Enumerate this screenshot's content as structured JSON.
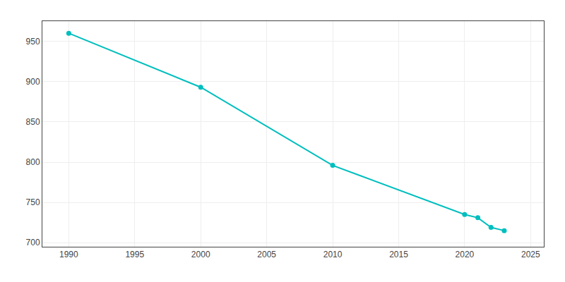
{
  "chart_data": {
    "type": "line",
    "x": [
      1990,
      2000,
      2010,
      2020,
      2021,
      2022,
      2023
    ],
    "values": [
      960,
      893,
      796,
      735,
      731,
      719,
      715
    ],
    "color": "#00BEBE",
    "marker": "circle",
    "line_style": "solid",
    "xlim": [
      1988,
      2026
    ],
    "ylim": [
      695,
      975
    ],
    "xticks": [
      1990,
      1995,
      2000,
      2005,
      2010,
      2015,
      2020,
      2025
    ],
    "yticks": [
      700,
      750,
      800,
      850,
      900,
      950
    ],
    "grid": true
  }
}
